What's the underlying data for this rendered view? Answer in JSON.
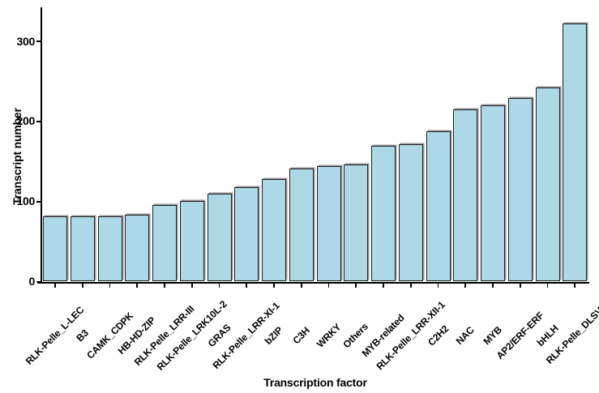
{
  "chart_data": {
    "type": "bar",
    "title": "",
    "xlabel": "Transcription factor",
    "ylabel": "Transcript number",
    "categories": [
      "RLK-Pelle_L-LEC",
      "B3",
      "CAMK_CDPK",
      "HB-HD-ZIP",
      "RLK-Pelle_LRR-III",
      "RLK-Pelle_LRK10L-2",
      "GRAS",
      "RLK-Pelle_LRR-XI-1",
      "bZIP",
      "C3H",
      "WRKY",
      "Others",
      "MYB-related",
      "RLK-Pelle_LRR-XII-1",
      "C2H2",
      "NAC",
      "MYB",
      "AP2/ERF-ERF",
      "bHLH",
      "RLK-Pelle_DLSV"
    ],
    "values": [
      81,
      82,
      82,
      84,
      96,
      101,
      110,
      118,
      128,
      141,
      144,
      146,
      170,
      172,
      188,
      215,
      220,
      229,
      242,
      322
    ],
    "yticks": [
      0,
      100,
      200,
      300
    ],
    "ylim": [
      0,
      342
    ],
    "grid": false,
    "legend": "none",
    "x_tick_rotation": -45,
    "colors": {
      "bar_fill": "#ADD8E6",
      "bar_border": "#1F1F1F",
      "bar_shadow": "#9A9A9A",
      "axis": "#000000",
      "text": "#000000",
      "background": "#FFFFFF"
    }
  }
}
